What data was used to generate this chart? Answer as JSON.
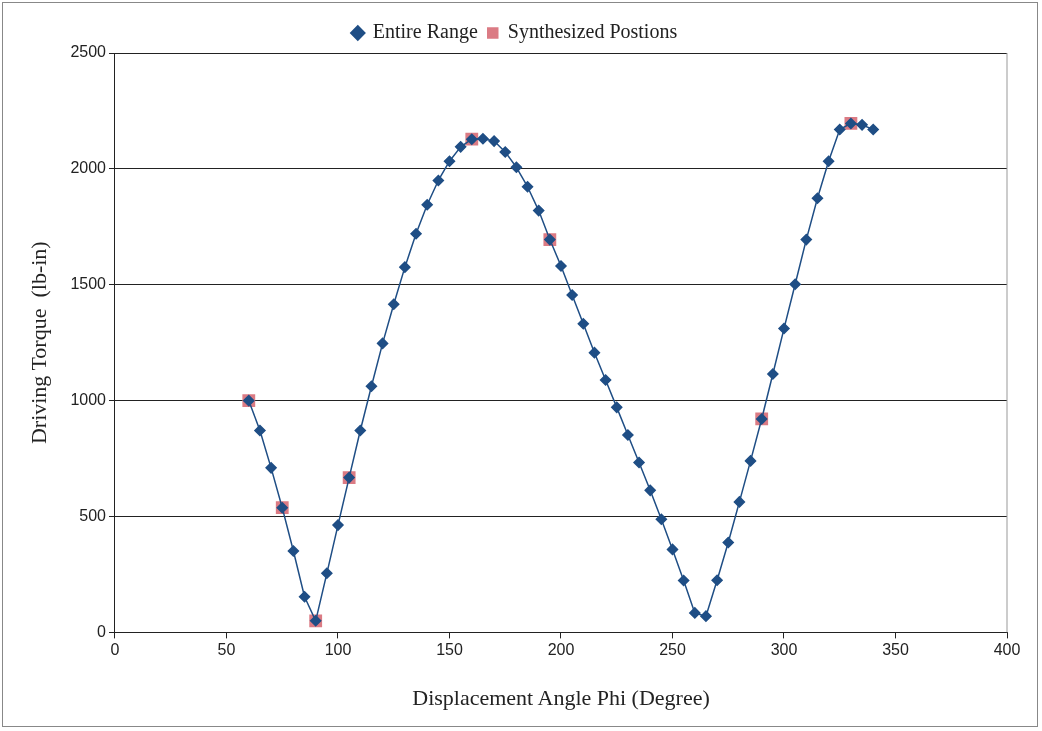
{
  "chart_data": {
    "type": "line",
    "xlabel": "Displacement Angle Phi (Degree)",
    "ylabel": "Driving Torque  (lb-in)",
    "xlim": [
      0,
      400
    ],
    "xticks": [
      0,
      50,
      100,
      150,
      200,
      250,
      300,
      350,
      400
    ],
    "ylim": [
      0,
      2500
    ],
    "yticks": [
      0,
      500,
      1000,
      1500,
      2000,
      2500
    ],
    "grid": "y",
    "legend": "top",
    "series": [
      {
        "name": "Entire Range",
        "marker": "diamond",
        "color": "#1f4e85",
        "x": [
          60,
          65,
          70,
          75,
          80,
          85,
          90,
          95,
          100,
          105,
          110,
          115,
          120,
          125,
          130,
          135,
          140,
          145,
          150,
          155,
          160,
          165,
          170,
          175,
          180,
          185,
          190,
          195,
          200,
          205,
          210,
          215,
          220,
          225,
          230,
          235,
          240,
          245,
          250,
          255,
          260,
          265,
          270,
          275,
          280,
          285,
          290,
          295,
          300,
          305,
          310,
          315,
          320,
          325,
          330,
          335,
          340
        ],
        "values": [
          1000,
          871,
          710,
          538,
          351,
          154,
          50,
          255,
          463,
          668,
          871,
          1062,
          1247,
          1416,
          1576,
          1720,
          1845,
          1950,
          2033,
          2095,
          2128,
          2130,
          2120,
          2073,
          2007,
          1923,
          1820,
          1695,
          1581,
          1456,
          1332,
          1207,
          1089,
          971,
          852,
          733,
          613,
          488,
          358,
          224,
          84,
          70,
          225,
          388,
          563,
          740,
          921,
          1115,
          1311,
          1502,
          1695,
          1873,
          2033,
          2170,
          2196,
          2190,
          2170
        ]
      },
      {
        "name": "Synthesized Postions",
        "type": "scatter",
        "marker": "square",
        "color": "#db7b84",
        "x": [
          60,
          75,
          90,
          105,
          160,
          195,
          290,
          330
        ],
        "values": [
          1000,
          538,
          50,
          668,
          2128,
          1695,
          921,
          2196
        ]
      }
    ]
  }
}
